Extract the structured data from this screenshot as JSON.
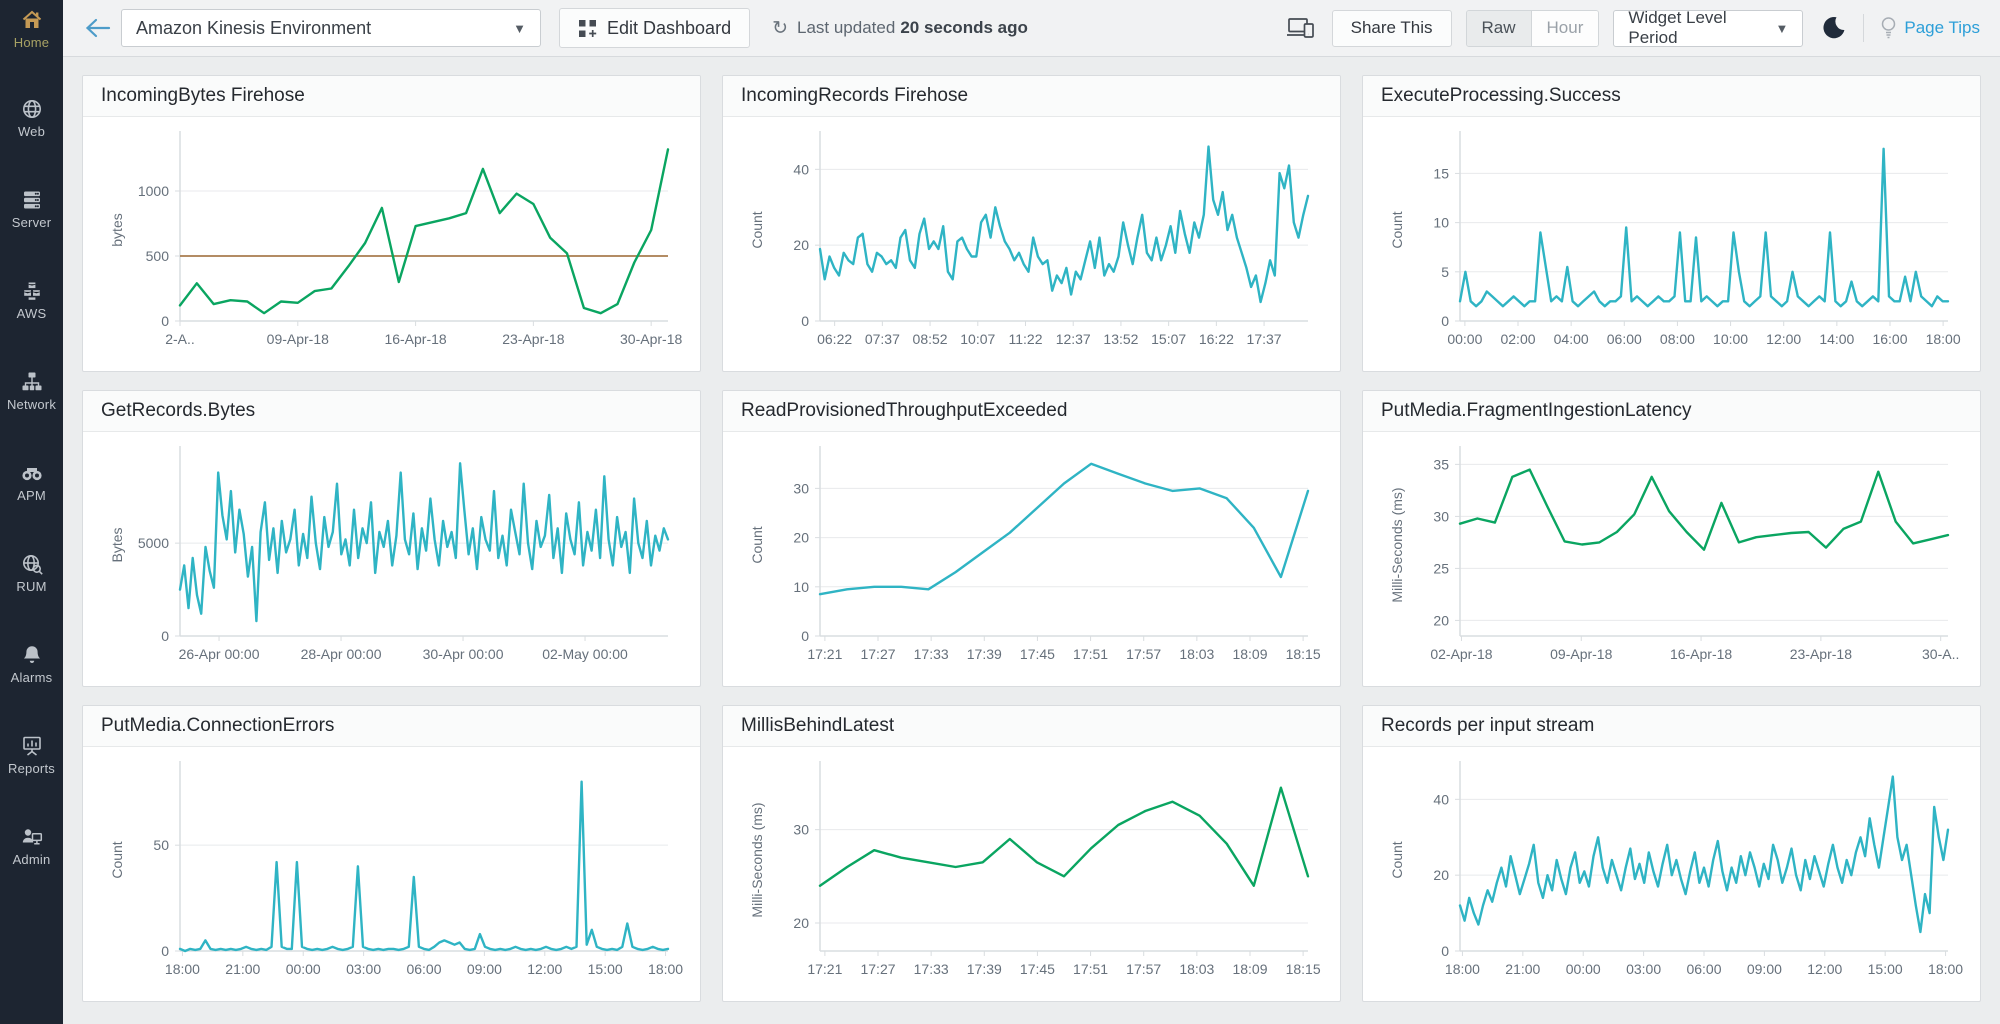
{
  "sidebar": {
    "items": [
      {
        "label": "Home",
        "icon": "home-icon",
        "active": true
      },
      {
        "label": "Web",
        "icon": "web-icon",
        "active": false
      },
      {
        "label": "Server",
        "icon": "server-icon",
        "active": false
      },
      {
        "label": "AWS",
        "icon": "aws-icon",
        "active": false
      },
      {
        "label": "Network",
        "icon": "network-icon",
        "active": false
      },
      {
        "label": "APM",
        "icon": "apm-icon",
        "active": false
      },
      {
        "label": "RUM",
        "icon": "rum-icon",
        "active": false
      },
      {
        "label": "Alarms",
        "icon": "bell-icon",
        "active": false
      },
      {
        "label": "Reports",
        "icon": "reports-icon",
        "active": false
      },
      {
        "label": "Admin",
        "icon": "admin-icon",
        "active": false
      }
    ]
  },
  "topbar": {
    "dashboard_select": {
      "value": "Amazon Kinesis Environment"
    },
    "edit_dashboard_label": "Edit Dashboard",
    "last_updated_prefix": "Last updated",
    "last_updated_value": "20 seconds ago",
    "share_label": "Share This",
    "granularity": {
      "options": [
        "Raw",
        "Hour"
      ],
      "selected": "Raw"
    },
    "period_select": {
      "value": "Widget Level Period"
    },
    "page_tips_label": "Page Tips"
  },
  "colors": {
    "teal_line": "#2fb4c4",
    "green_line": "#0aa561",
    "threshold_brown": "#a87c4e",
    "sidebar_bg": "#1d2531",
    "accent_blue": "#2d9fd8"
  },
  "chart_data": [
    {
      "type": "line",
      "title": "IncomingBytes Firehose",
      "ylabel": "bytes",
      "color": "#0aa561",
      "yticks": [
        0,
        500,
        1000
      ],
      "ylim": [
        0,
        1400
      ],
      "threshold": 500,
      "threshold_color": "#a87c4e",
      "xticks": [
        "2-A..",
        "09-Apr-18",
        "16-Apr-18",
        "23-Apr-18",
        "30-Apr-18"
      ],
      "tick_range": [
        0.0,
        0.9655
      ],
      "values": [
        120,
        290,
        130,
        160,
        150,
        60,
        150,
        140,
        230,
        250,
        420,
        600,
        870,
        300,
        730,
        760,
        790,
        830,
        1170,
        830,
        980,
        900,
        640,
        520,
        100,
        60,
        130,
        450,
        700,
        1320
      ]
    },
    {
      "type": "line",
      "title": "IncomingRecords Firehose",
      "ylabel": "Count",
      "color": "#2fb4c4",
      "yticks": [
        0,
        20,
        40
      ],
      "ylim": [
        0,
        48
      ],
      "xticks": [
        "06:22",
        "07:37",
        "08:52",
        "10:07",
        "11:22",
        "12:37",
        "13:52",
        "15:07",
        "16:22",
        "17:37"
      ],
      "tick_range": [
        0.03,
        0.91
      ],
      "values": [
        19,
        11,
        17,
        14,
        12,
        18,
        16,
        15,
        22,
        23,
        15,
        13,
        18,
        17,
        15,
        16,
        14,
        22,
        24,
        16,
        14,
        23,
        27,
        19,
        21,
        19,
        25,
        13,
        11,
        21,
        22,
        19,
        17,
        17,
        26,
        28,
        22,
        30,
        25,
        21,
        19,
        16,
        18,
        15,
        13,
        22,
        17,
        15,
        16,
        8,
        12,
        10,
        14,
        7,
        13,
        11,
        16,
        21,
        14,
        22,
        12,
        15,
        13,
        17,
        26,
        20,
        15,
        22,
        28,
        18,
        16,
        22,
        16,
        20,
        25,
        18,
        29,
        23,
        18,
        26,
        22,
        28,
        46,
        32,
        28,
        34,
        24,
        28,
        22,
        18,
        14,
        9,
        12,
        5,
        10,
        16,
        12,
        39,
        35,
        41,
        26,
        22,
        28,
        33
      ]
    },
    {
      "type": "line",
      "title": "ExecuteProcessing.Success",
      "ylabel": "Count",
      "color": "#2fb4c4",
      "yticks": [
        0,
        5,
        10,
        15
      ],
      "ylim": [
        0,
        18.5
      ],
      "xticks": [
        "00:00",
        "02:00",
        "04:00",
        "06:00",
        "08:00",
        "10:00",
        "12:00",
        "14:00",
        "16:00",
        "18:00"
      ],
      "tick_range": [
        0.01,
        0.99
      ],
      "values": [
        2,
        5,
        2,
        1.5,
        2,
        3,
        2.5,
        2,
        1.5,
        2,
        2.5,
        2,
        1.5,
        2,
        2,
        9,
        5.5,
        2,
        2.5,
        2,
        5.5,
        2,
        1.5,
        2,
        2.5,
        3,
        2,
        1.5,
        2,
        2,
        2.5,
        9.5,
        2,
        2.5,
        2,
        1.5,
        2,
        2.5,
        2,
        2,
        2.5,
        9,
        2,
        2,
        8.5,
        2,
        2.5,
        2,
        1.5,
        2,
        2,
        9,
        5,
        2,
        1.5,
        2,
        2.5,
        9,
        2.5,
        2,
        1.5,
        2,
        5,
        2.5,
        2,
        1.5,
        2,
        2.5,
        2,
        9,
        2,
        1.5,
        2,
        4,
        2,
        1.5,
        2,
        2.5,
        2,
        17.5,
        2.5,
        2,
        2,
        4.5,
        2,
        5,
        2.5,
        2,
        1.5,
        2.5,
        2,
        2
      ]
    },
    {
      "type": "line",
      "title": "GetRecords.Bytes",
      "ylabel": "Bytes",
      "color": "#2fb4c4",
      "yticks": [
        0,
        5000
      ],
      "ylim": [
        0,
        9800
      ],
      "xticks": [
        "26-Apr 00:00",
        "28-Apr 00:00",
        "30-Apr 00:00",
        "02-May 00:00"
      ],
      "tick_range": [
        0.08,
        0.83
      ],
      "values": [
        2500,
        3800,
        1500,
        4200,
        2200,
        1200,
        4800,
        3500,
        2600,
        8800,
        6500,
        5200,
        7800,
        4500,
        6800,
        5500,
        3200,
        4800,
        800,
        5600,
        7200,
        4100,
        5800,
        3400,
        6200,
        4500,
        5200,
        6800,
        3800,
        5500,
        4200,
        7500,
        5000,
        3600,
        6400,
        4800,
        5600,
        8200,
        4400,
        5200,
        3800,
        6800,
        4200,
        5800,
        5000,
        7200,
        3400,
        5600,
        4800,
        6200,
        3800,
        5400,
        8800,
        5200,
        4400,
        6600,
        3600,
        5800,
        4600,
        7400,
        5200,
        3800,
        6200,
        4800,
        5600,
        4200,
        9300,
        6800,
        4400,
        5800,
        3600,
        6400,
        5200,
        4600,
        7800,
        4200,
        5400,
        3800,
        6800,
        5600,
        4400,
        8200,
        5000,
        3600,
        6200,
        4800,
        5400,
        7600,
        4200,
        5800,
        3400,
        6600,
        5200,
        4400,
        7200,
        3800,
        5600,
        4600,
        6800,
        4200,
        8600,
        5200,
        3800,
        6400,
        4800,
        5600,
        3400,
        7400,
        5000,
        4200,
        6200,
        3800,
        5400,
        4600,
        5800,
        5200
      ]
    },
    {
      "type": "line",
      "title": "ReadProvisionedThroughputExceeded",
      "ylabel": "Count",
      "color": "#2fb4c4",
      "yticks": [
        0,
        10,
        20,
        30
      ],
      "ylim": [
        0,
        37
      ],
      "xticks": [
        "17:21",
        "17:27",
        "17:33",
        "17:39",
        "17:45",
        "17:51",
        "17:57",
        "18:03",
        "18:09",
        "18:15"
      ],
      "tick_range": [
        0.01,
        0.99
      ],
      "values": [
        8.5,
        9.5,
        10,
        10,
        9.5,
        13,
        17,
        21,
        26,
        31,
        35,
        33,
        31,
        29.5,
        30,
        28,
        22,
        12,
        29.5
      ]
    },
    {
      "type": "line",
      "title": "PutMedia.FragmentIngestionLatency",
      "ylabel": "Milli-Seconds (ms)",
      "color": "#0aa561",
      "yticks": [
        20,
        25,
        30,
        35
      ],
      "ylim": [
        18.5,
        36
      ],
      "xticks": [
        "02-Apr-18",
        "09-Apr-18",
        "16-Apr-18",
        "23-Apr-18",
        "30-A.."
      ],
      "tick_range": [
        0.003,
        0.985
      ],
      "values": [
        29.3,
        29.8,
        29.4,
        33.8,
        34.5,
        31.0,
        27.6,
        27.3,
        27.5,
        28.5,
        30.2,
        33.8,
        30.5,
        28.5,
        26.8,
        31.3,
        27.5,
        28.0,
        28.2,
        28.4,
        28.5,
        27.0,
        28.8,
        29.5,
        34.3,
        29.5,
        27.4,
        27.8,
        28.2
      ]
    },
    {
      "type": "line",
      "title": "PutMedia.ConnectionErrors",
      "ylabel": "Count",
      "color": "#2fb4c4",
      "yticks": [
        0,
        50
      ],
      "ylim": [
        0,
        86
      ],
      "xticks": [
        "18:00",
        "21:00",
        "00:00",
        "03:00",
        "06:00",
        "09:00",
        "12:00",
        "15:00",
        "18:00"
      ],
      "tick_range": [
        0.005,
        0.995
      ],
      "values": [
        1,
        0,
        1,
        0.5,
        1,
        5,
        1,
        0.5,
        1,
        0.5,
        1,
        0.5,
        1,
        2,
        1,
        0.5,
        1,
        0.5,
        2,
        42,
        2,
        1,
        1,
        42,
        2,
        1,
        0.5,
        1,
        0.5,
        1,
        2,
        1,
        0.5,
        1,
        2,
        40,
        2,
        1,
        0.5,
        1,
        0.5,
        1,
        1,
        0.5,
        1,
        2,
        35,
        2,
        1,
        0.5,
        2,
        4,
        5,
        4,
        3,
        4,
        1,
        0.5,
        1,
        8,
        2,
        1,
        0.5,
        1,
        0.5,
        1,
        2,
        1,
        0.5,
        1,
        0.5,
        1,
        2,
        1,
        0.5,
        1,
        2,
        1,
        2,
        80,
        3,
        10,
        2,
        1,
        0.5,
        1,
        0.5,
        2,
        13,
        2,
        1,
        0.5,
        1,
        2,
        1,
        0.5,
        1
      ]
    },
    {
      "type": "line",
      "title": "MillisBehindLatest",
      "ylabel": "Milli-Seconds (ms)",
      "color": "#0aa561",
      "yticks": [
        20,
        30
      ],
      "ylim": [
        17,
        36.5
      ],
      "xticks": [
        "17:21",
        "17:27",
        "17:33",
        "17:39",
        "17:45",
        "17:51",
        "17:57",
        "18:03",
        "18:09",
        "18:15"
      ],
      "tick_range": [
        0.01,
        0.99
      ],
      "values": [
        24,
        26,
        27.8,
        27,
        26.5,
        26,
        26.5,
        29,
        26.5,
        25,
        28,
        30.5,
        32,
        33,
        31.5,
        28.5,
        24,
        34.5,
        25
      ]
    },
    {
      "type": "line",
      "title": "Records per input stream",
      "ylabel": "Count",
      "color": "#2fb4c4",
      "yticks": [
        0,
        20,
        40
      ],
      "ylim": [
        0,
        48
      ],
      "xticks": [
        "18:00",
        "21:00",
        "00:00",
        "03:00",
        "06:00",
        "09:00",
        "12:00",
        "15:00",
        "18:00"
      ],
      "tick_range": [
        0.005,
        0.995
      ],
      "values": [
        12,
        8,
        14,
        10,
        7,
        12,
        16,
        13,
        18,
        22,
        17,
        25,
        20,
        15,
        19,
        23,
        28,
        18,
        14,
        20,
        16,
        24,
        19,
        15,
        22,
        26,
        18,
        21,
        17,
        25,
        30,
        22,
        18,
        24,
        20,
        16,
        22,
        27,
        19,
        23,
        18,
        26,
        21,
        17,
        23,
        28,
        20,
        24,
        19,
        15,
        21,
        26,
        18,
        22,
        17,
        24,
        29,
        21,
        16,
        22,
        18,
        25,
        20,
        26,
        22,
        17,
        23,
        19,
        28,
        24,
        18,
        22,
        27,
        20,
        16,
        24,
        19,
        25,
        21,
        17,
        23,
        28,
        22,
        18,
        24,
        20,
        26,
        30,
        25,
        35,
        28,
        22,
        30,
        38,
        46,
        30,
        24,
        28,
        20,
        12,
        5,
        15,
        10,
        38,
        30,
        24,
        32
      ]
    }
  ]
}
